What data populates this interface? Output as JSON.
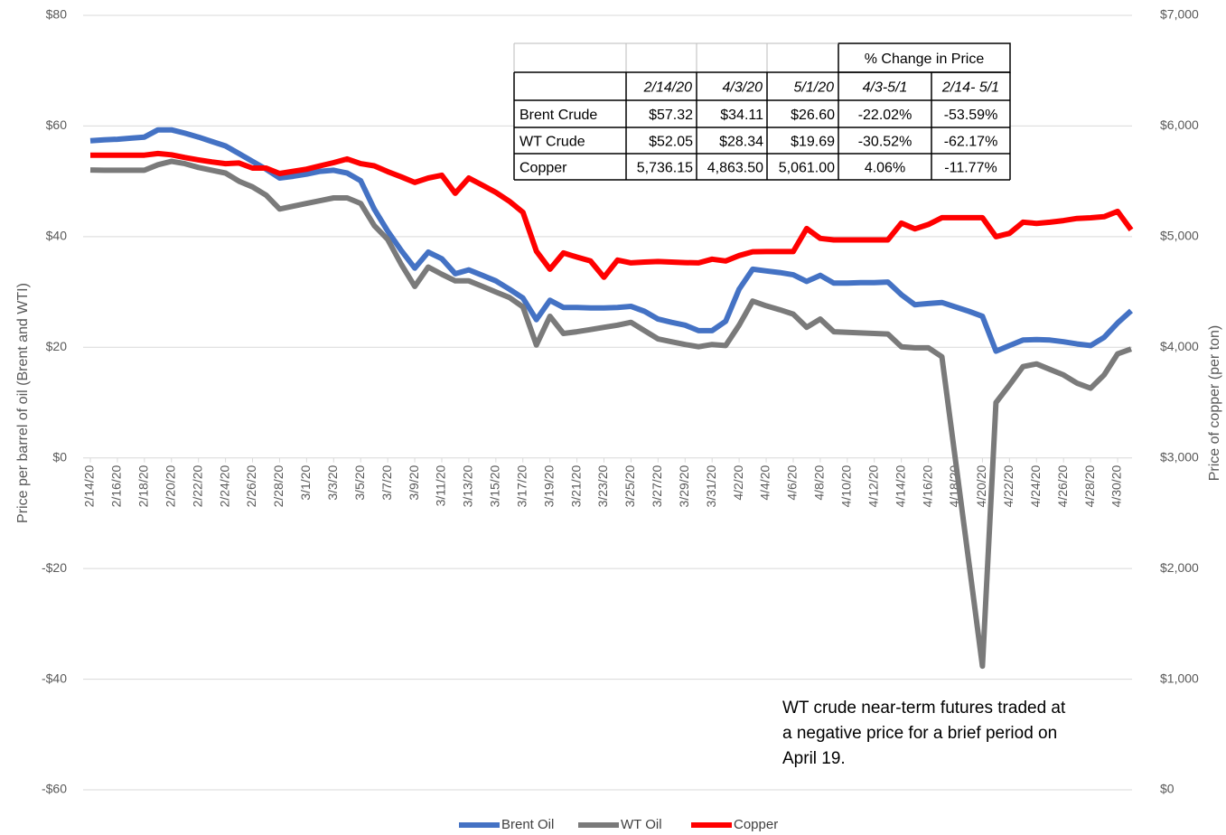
{
  "chart_data": {
    "type": "line",
    "categories": [
      "2/14/20",
      null,
      "2/16/20",
      null,
      "2/18/20",
      null,
      "2/20/20",
      null,
      "2/22/20",
      null,
      "2/24/20",
      null,
      "2/26/20",
      null,
      "2/28/20",
      null,
      "3/1/20",
      null,
      "3/3/20",
      null,
      "3/5/20",
      null,
      "3/7/20",
      null,
      "3/9/20",
      null,
      "3/11/20",
      null,
      "3/13/20",
      null,
      "3/15/20",
      null,
      "3/17/20",
      null,
      "3/19/20",
      null,
      "3/21/20",
      null,
      "3/23/20",
      null,
      "3/25/20",
      null,
      "3/27/20",
      null,
      "3/29/20",
      null,
      "3/31/20",
      null,
      "4/2/20",
      null,
      "4/4/20",
      null,
      "4/6/20",
      null,
      "4/8/20",
      null,
      "4/10/20",
      null,
      "4/12/20",
      null,
      "4/14/20",
      null,
      "4/16/20",
      null,
      "4/18/20",
      null,
      "4/20/20",
      null,
      "4/22/20",
      null,
      "4/24/20",
      null,
      "4/26/20",
      null,
      "4/28/20",
      null,
      "4/30/20",
      null
    ],
    "series": [
      {
        "name": "Brent Oil",
        "color": "#4472c4",
        "values": [
          57.32,
          57.5,
          57.6,
          57.8,
          58.0,
          59.3,
          59.3,
          58.7,
          58.0,
          57.2,
          56.4,
          55.0,
          53.6,
          52.2,
          50.6,
          50.9,
          51.3,
          51.8,
          52.0,
          51.5,
          50.1,
          45.0,
          41.0,
          37.5,
          34.3,
          37.2,
          36.0,
          33.3,
          34.0,
          33.0,
          32.0,
          30.5,
          28.9,
          25.0,
          28.5,
          27.2,
          27.2,
          27.1,
          27.1,
          27.2,
          27.4,
          26.5,
          25.1,
          24.5,
          24.0,
          23.0,
          23.0,
          24.7,
          30.5,
          34.11,
          33.8,
          33.5,
          33.1,
          31.9,
          33.0,
          31.6,
          31.6,
          31.7,
          31.7,
          31.8,
          29.5,
          27.7,
          27.9,
          28.1,
          27.3,
          26.5,
          25.6,
          19.3,
          20.3,
          21.3,
          21.4,
          21.3,
          21.0,
          20.6,
          20.3,
          21.8,
          24.4,
          26.6
        ]
      },
      {
        "name": "WT Oil",
        "color": "#7a7a7a",
        "values": [
          52.05,
          52.0,
          52.0,
          52.0,
          52.0,
          53.0,
          53.6,
          53.2,
          52.5,
          52.0,
          51.5,
          50.0,
          49.0,
          47.5,
          45.0,
          45.5,
          46.0,
          46.5,
          47.0,
          47.0,
          46.0,
          42.0,
          39.5,
          35.0,
          31.0,
          34.5,
          33.2,
          32.0,
          32.0,
          31.0,
          30.0,
          29.0,
          27.3,
          20.4,
          25.6,
          22.5,
          22.8,
          23.2,
          23.6,
          24.0,
          24.5,
          23.0,
          21.5,
          21.0,
          20.5,
          20.1,
          20.5,
          20.3,
          24.0,
          28.34,
          27.5,
          26.8,
          26.0,
          23.6,
          25.1,
          22.8,
          22.7,
          22.6,
          22.5,
          22.4,
          20.1,
          19.9,
          19.9,
          18.3,
          -0.3,
          -19.0,
          -37.63,
          10.0,
          13.2,
          16.5,
          17.0,
          16.0,
          15.0,
          13.5,
          12.6,
          15.0,
          18.8,
          19.69
        ]
      },
      {
        "name": "Copper",
        "color": "#ff0000",
        "axis": "y2",
        "values": [
          5736.15,
          5736,
          5736,
          5736,
          5736,
          5751,
          5740,
          5715,
          5694,
          5675,
          5660,
          5665,
          5620,
          5620,
          5571,
          5590,
          5610,
          5640,
          5669,
          5702,
          5660,
          5640,
          5588,
          5540,
          5490,
          5530,
          5555,
          5392,
          5530,
          5465,
          5400,
          5320,
          5220,
          4869,
          4706,
          4853,
          4815,
          4780,
          4633,
          4788,
          4763,
          4770,
          4775,
          4770,
          4765,
          4763,
          4796,
          4780,
          4829,
          4863.5,
          4865,
          4865,
          4865,
          5073,
          4984,
          4970,
          4970,
          4970,
          4970,
          4970,
          5122,
          5070,
          5110,
          5171,
          5171,
          5171,
          5171,
          5000,
          5030,
          5130,
          5120,
          5130,
          5145,
          5165,
          5170,
          5180,
          5228,
          5061
        ]
      }
    ],
    "ylim": [
      -60,
      80
    ],
    "yticks": [
      {
        "value": -60,
        "label": "-$60"
      },
      {
        "value": -40,
        "label": "-$40"
      },
      {
        "value": -20,
        "label": "-$20"
      },
      {
        "value": 0,
        "label": "$0"
      },
      {
        "value": 20,
        "label": "$20"
      },
      {
        "value": 40,
        "label": "$40"
      },
      {
        "value": 60,
        "label": "$60"
      },
      {
        "value": 80,
        "label": "$80"
      }
    ],
    "y2lim": [
      0,
      7000
    ],
    "y2ticks": [
      {
        "value": 0,
        "label": "$0"
      },
      {
        "value": 1000,
        "label": "$1,000"
      },
      {
        "value": 2000,
        "label": "$2,000"
      },
      {
        "value": 3000,
        "label": "$3,000"
      },
      {
        "value": 4000,
        "label": "$4,000"
      },
      {
        "value": 5000,
        "label": "$5,000"
      },
      {
        "value": 6000,
        "label": "$6,000"
      },
      {
        "value": 7000,
        "label": "$7,000"
      }
    ],
    "ylabel": "Price per barrel of oil (Brent and WTI)",
    "y2label": "Price of copper (per ton)",
    "grid": true,
    "legend": "bottom",
    "annotation": [
      "WT crude near-term futures traded at",
      "a negative price for a brief period on",
      "April 19."
    ],
    "table": {
      "title": "% Change in Price",
      "columns": [
        "2/14/20",
        "4/3/20",
        "5/1/20",
        "4/3-5/1",
        "2/14- 5/1"
      ],
      "rows": [
        [
          "Brent Crude",
          "$57.32",
          "$34.11",
          "$26.60",
          "-22.02%",
          "-53.59%"
        ],
        [
          "WT Crude",
          "$52.05",
          "$28.34",
          "$19.69",
          "-30.52%",
          "-62.17%"
        ],
        [
          "Copper",
          "5,736.15",
          "4,863.50",
          "5,061.00",
          "4.06%",
          "-11.77%"
        ]
      ]
    }
  }
}
